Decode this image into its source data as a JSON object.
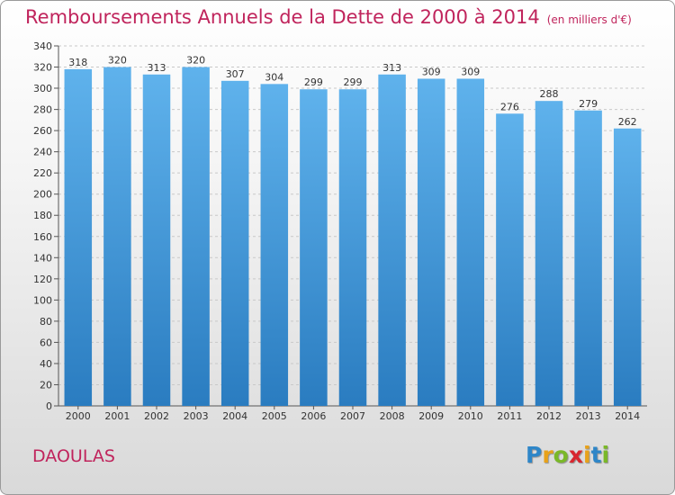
{
  "title": "Remboursements Annuels de la Dette de 2000 à 2014",
  "unit_note": "(en milliers d'€)",
  "city": "DAOULAS",
  "logo": {
    "letters": [
      "P",
      "r",
      "o",
      "x",
      "i",
      "t",
      "i"
    ],
    "colors": [
      "#2e86c8",
      "#e8a21a",
      "#7ab828",
      "#d8262f",
      "#e8a21a",
      "#2e86c8",
      "#7ab828"
    ]
  },
  "colors": {
    "title": "#c0245c",
    "bar_top": "#5fb2ec",
    "bar_bottom": "#2a7cc0",
    "grid": "#c8c8c8"
  },
  "chart_data": {
    "type": "bar",
    "title": "Remboursements Annuels de la Dette de 2000 à 2014",
    "categories": [
      "2000",
      "2001",
      "2002",
      "2003",
      "2004",
      "2005",
      "2006",
      "2007",
      "2008",
      "2009",
      "2010",
      "2011",
      "2012",
      "2013",
      "2014"
    ],
    "values": [
      318,
      320,
      313,
      320,
      307,
      304,
      299,
      299,
      313,
      309,
      309,
      276,
      288,
      279,
      262
    ],
    "ylim": [
      0,
      340
    ],
    "ytick_step": 20,
    "grid": true,
    "legend": "none"
  }
}
